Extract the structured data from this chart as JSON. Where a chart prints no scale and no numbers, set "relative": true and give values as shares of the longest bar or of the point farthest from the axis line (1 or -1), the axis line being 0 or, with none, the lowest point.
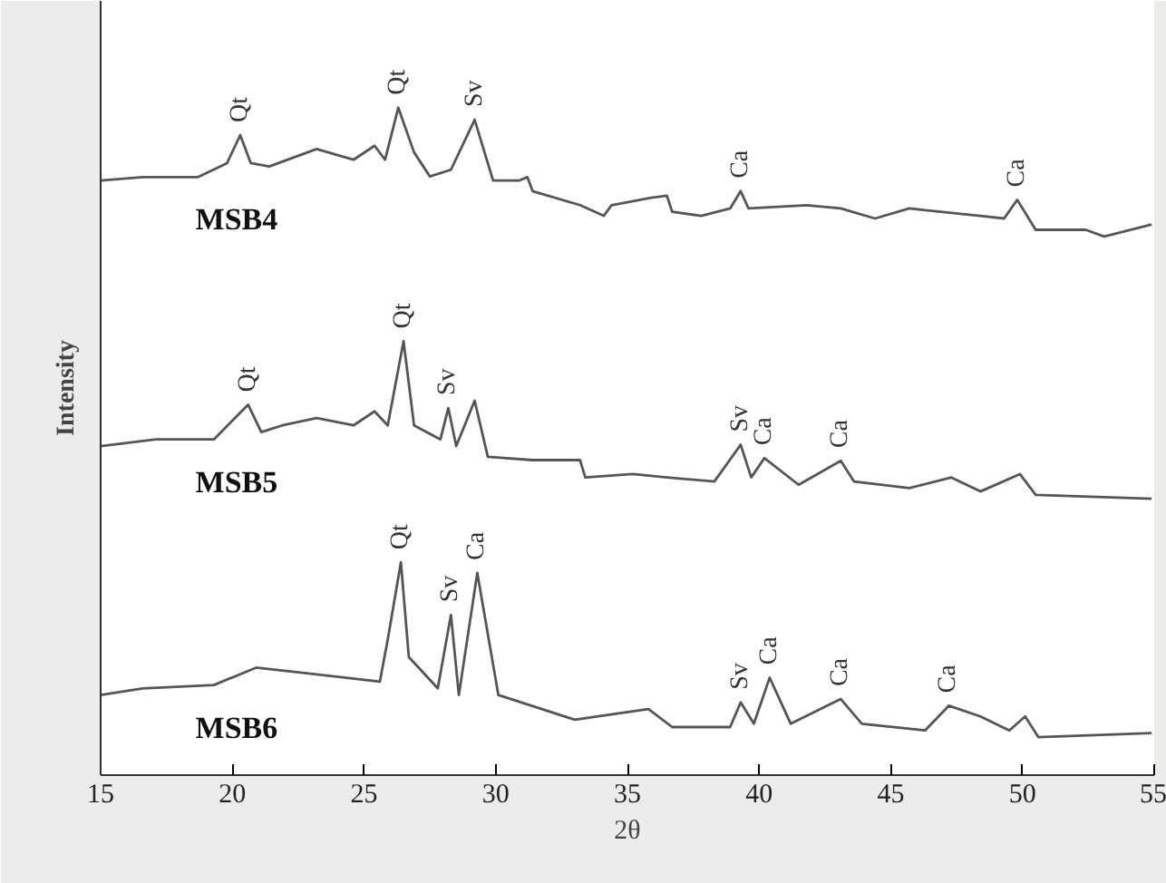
{
  "chart_data": {
    "type": "line",
    "relative": true,
    "xlabel": "2θ",
    "ylabel": "Intensity",
    "xlim": [
      15,
      55
    ],
    "xticks": [
      15,
      20,
      25,
      30,
      35,
      40,
      45,
      50,
      55
    ],
    "grid": false,
    "legend": false,
    "marker": "none",
    "line_style": "solid",
    "series": [
      {
        "name": "MSB4",
        "color": "#555555",
        "x": [
          15,
          16.6,
          18.7,
          19.8,
          20.3,
          20.7,
          21.4,
          23.2,
          24.6,
          25.4,
          25.8,
          26.3,
          26.9,
          27.5,
          28.3,
          29.2,
          29.9,
          30.9,
          31.2,
          31.4,
          33.2,
          34.1,
          34.4,
          35.9,
          36.5,
          36.7,
          37.8,
          38.9,
          39.3,
          39.6,
          41.8,
          43.1,
          44.4,
          45.7,
          48.4,
          49.3,
          49.8,
          50.5,
          52.4,
          53.1,
          54.9
        ],
        "values": [
          0.891,
          0.896,
          0.896,
          0.917,
          0.959,
          0.917,
          0.912,
          0.938,
          0.922,
          0.943,
          0.922,
          1.0,
          0.933,
          0.897,
          0.907,
          0.982,
          0.891,
          0.891,
          0.896,
          0.875,
          0.854,
          0.838,
          0.854,
          0.865,
          0.868,
          0.844,
          0.838,
          0.849,
          0.875,
          0.849,
          0.854,
          0.849,
          0.834,
          0.849,
          0.838,
          0.834,
          0.862,
          0.817,
          0.817,
          0.807,
          0.825
        ]
      },
      {
        "name": "MSB5",
        "color": "#555555",
        "x": [
          15,
          17.1,
          19.3,
          20.6,
          21.1,
          21.9,
          23.2,
          24.6,
          25.4,
          25.9,
          26.5,
          26.9,
          27.9,
          28.2,
          28.5,
          29.2,
          29.7,
          31.4,
          33.2,
          33.4,
          35.2,
          36.5,
          38.3,
          39.3,
          39.7,
          40.2,
          41.5,
          43.1,
          43.6,
          45.7,
          47.3,
          48.4,
          49.9,
          50.5,
          54.9
        ],
        "values": [
          0.493,
          0.503,
          0.503,
          0.555,
          0.514,
          0.524,
          0.535,
          0.524,
          0.545,
          0.524,
          0.65,
          0.524,
          0.503,
          0.55,
          0.493,
          0.561,
          0.477,
          0.472,
          0.472,
          0.446,
          0.451,
          0.446,
          0.44,
          0.495,
          0.446,
          0.475,
          0.435,
          0.471,
          0.44,
          0.43,
          0.446,
          0.425,
          0.451,
          0.42,
          0.414
        ]
      },
      {
        "name": "MSB6",
        "color": "#555555",
        "x": [
          15,
          16.6,
          19.3,
          20.9,
          23.2,
          25.6,
          25.9,
          26.4,
          26.7,
          27.8,
          28.3,
          28.6,
          29.3,
          30.1,
          33.0,
          35.8,
          36.7,
          38.9,
          39.3,
          39.8,
          40.4,
          41.2,
          43.1,
          43.9,
          46.3,
          47.2,
          48.4,
          49.5,
          50.1,
          50.6,
          54.9
        ],
        "values": [
          0.12,
          0.13,
          0.135,
          0.161,
          0.151,
          0.14,
          0.203,
          0.319,
          0.177,
          0.13,
          0.24,
          0.12,
          0.303,
          0.12,
          0.083,
          0.099,
          0.072,
          0.072,
          0.109,
          0.077,
          0.146,
          0.077,
          0.114,
          0.077,
          0.067,
          0.104,
          0.088,
          0.067,
          0.088,
          0.057,
          0.063
        ]
      }
    ],
    "annotations": [
      {
        "text": "Qt",
        "x": 20.3,
        "y": 0.959
      },
      {
        "text": "Qt",
        "x": 26.3,
        "y": 1.0
      },
      {
        "text": "Sv",
        "x": 29.2,
        "y": 0.982
      },
      {
        "text": "Ca",
        "x": 39.3,
        "y": 0.875
      },
      {
        "text": "Ca",
        "x": 49.8,
        "y": 0.862
      },
      {
        "text": "Qt",
        "x": 20.6,
        "y": 0.555
      },
      {
        "text": "Qt",
        "x": 26.5,
        "y": 0.65
      },
      {
        "text": "Sv",
        "x": 28.2,
        "y": 0.55
      },
      {
        "text": "Sv",
        "x": 39.3,
        "y": 0.495
      },
      {
        "text": "Ca",
        "x": 40.2,
        "y": 0.475
      },
      {
        "text": "Ca",
        "x": 43.1,
        "y": 0.471
      },
      {
        "text": "Qt",
        "x": 26.4,
        "y": 0.319
      },
      {
        "text": "Sv",
        "x": 28.3,
        "y": 0.24
      },
      {
        "text": "Ca",
        "x": 29.3,
        "y": 0.303
      },
      {
        "text": "Sv",
        "x": 39.3,
        "y": 0.109
      },
      {
        "text": "Ca",
        "x": 40.4,
        "y": 0.146
      },
      {
        "text": "Ca",
        "x": 43.1,
        "y": 0.114
      },
      {
        "text": "Ca",
        "x": 47.2,
        "y": 0.104
      }
    ]
  }
}
